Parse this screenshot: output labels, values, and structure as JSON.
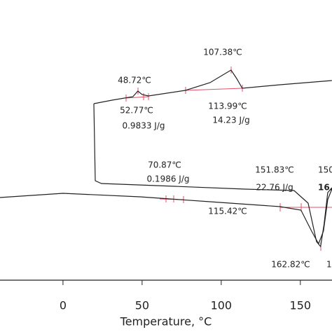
{
  "chart_data": {
    "type": "line",
    "xlabel": "Temperature, °C",
    "color": "#222222",
    "xlim": [
      -39.8,
      170
    ],
    "xticks": [
      0,
      50,
      100,
      150
    ],
    "ylim": [
      0,
      100
    ],
    "series": [
      {
        "x": [
          19.5,
          31.0,
          44.2,
          47.3,
          50.0,
          54.0,
          77.4,
          92.9,
          106.2,
          109.7,
          113.3,
          137.2,
          169.9
        ],
        "values": [
          63,
          64.25,
          65.5,
          67.5,
          66.25,
          65.75,
          67.75,
          70.5,
          75,
          72,
          68.5,
          69.75,
          71.25
        ]
      },
      {
        "x": [
          19.5,
          20.4,
          24.3,
          70.8,
          115,
          146,
          154.9,
          160.2,
          162.8,
          165,
          167.3,
          169.9
        ],
        "values": [
          63,
          35.5,
          34.5,
          33.5,
          32.5,
          32,
          27.5,
          13.75,
          12,
          20,
          31.25,
          33
        ]
      },
      {
        "x": [
          -39.8,
          0,
          48.7,
          92.9,
          137.2,
          150.4,
          157.1,
          161.5,
          164.6,
          167.3,
          169.9
        ],
        "values": [
          29.5,
          31,
          29.75,
          28,
          26.25,
          25,
          17.5,
          13,
          17.5,
          28.75,
          32.5
        ]
      }
    ],
    "annotations": [
      "107.38℃",
      "48.72℃",
      "52.77℃",
      "0.9833 J/g",
      "113.99℃",
      "14.23 J/g",
      "70.87℃",
      "0.1986 J/g",
      "115.42℃",
      "151.83℃",
      "22.76 J/g",
      "150",
      "16.",
      "162.82℃",
      "1"
    ]
  }
}
